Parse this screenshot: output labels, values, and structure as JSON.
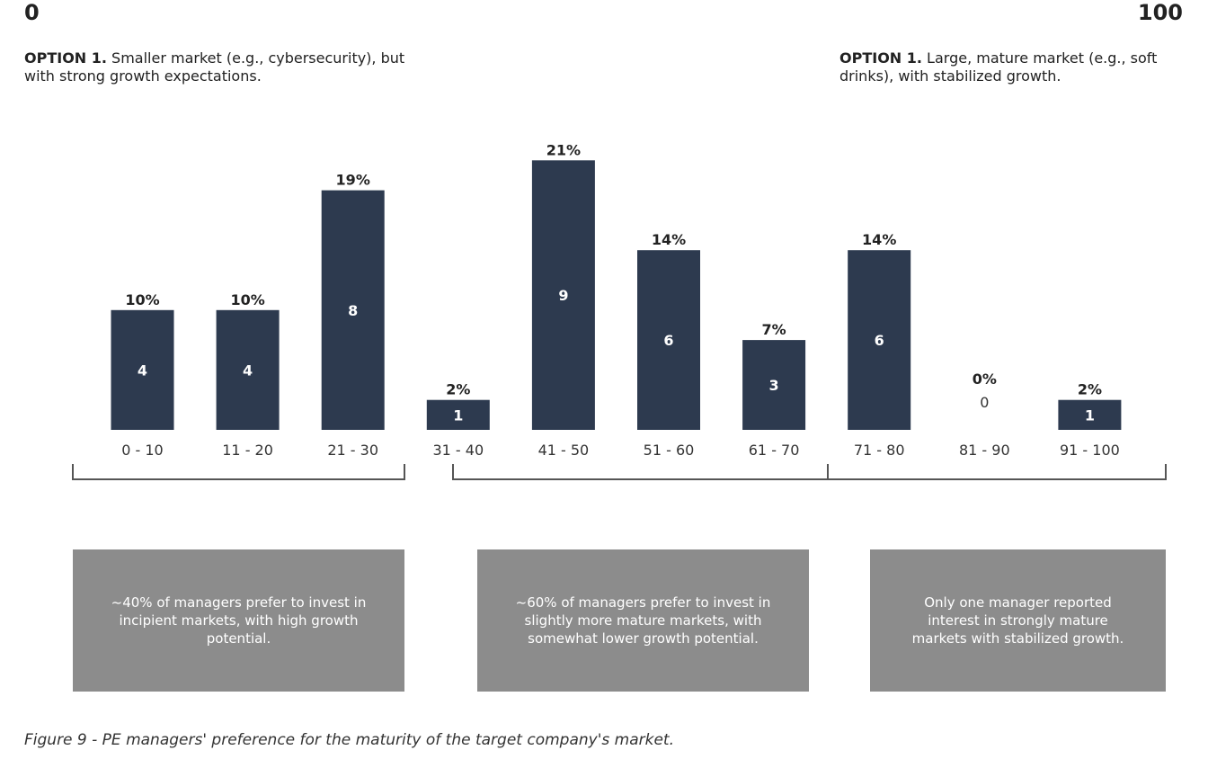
{
  "scale": {
    "min": "0",
    "max": "100"
  },
  "options": {
    "left": {
      "label": "OPTION 1.",
      "text": " Smaller market (e.g., cybersecurity), but with strong growth expectations."
    },
    "right": {
      "label": "OPTION 1.",
      "text": " Large, mature market (e.g., soft drinks), with stabilized growth."
    }
  },
  "chart_data": {
    "type": "bar",
    "categories": [
      "0 - 10",
      "11 - 20",
      "21 - 30",
      "31 - 40",
      "41 - 50",
      "51 - 60",
      "61 - 70",
      "71 - 80",
      "81 - 90",
      "91 - 100"
    ],
    "values": [
      4,
      4,
      8,
      1,
      9,
      6,
      3,
      6,
      0,
      1
    ],
    "percent_labels": [
      "10%",
      "10%",
      "19%",
      "2%",
      "21%",
      "14%",
      "7%",
      "14%",
      "0%",
      "2%"
    ],
    "ylim": [
      0,
      9
    ],
    "grid": false,
    "bar_color": "#2d3a4f"
  },
  "notes": [
    "~40% of managers prefer to invest in incipient markets, with high growth potential.",
    "~60% of managers prefer to invest in slightly more mature markets, with somewhat lower growth potential.",
    "Only one manager reported interest in strongly mature markets with stabilized growth."
  ],
  "caption": "Figure 9 - PE managers' preference for the maturity of the target company's market."
}
